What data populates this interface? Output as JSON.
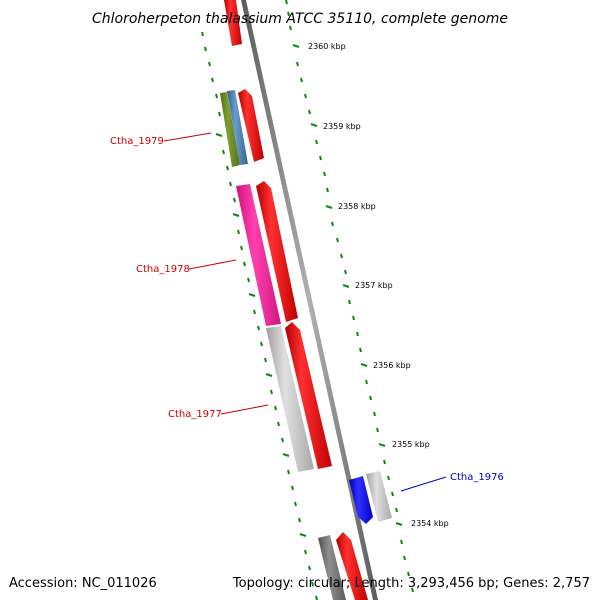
{
  "title": "Chloroherpeton thalassium ATCC 35110, complete genome",
  "accession": "Accession: NC_011026",
  "topology": "Topology: circular; Length: 3,293,456 bp; Genes: 2,757",
  "ticks": [
    "2360 kbp",
    "2359 kbp",
    "2358 kbp",
    "2357 kbp",
    "2356 kbp",
    "2355 kbp",
    "2354 kbp"
  ],
  "gene_labels": [
    {
      "text": "Ctha_1979",
      "color": "#cc0000"
    },
    {
      "text": "Ctha_1978",
      "color": "#cc0000"
    },
    {
      "text": "Ctha_1977",
      "color": "#cc0000"
    },
    {
      "text": "Ctha_1976",
      "color": "#0000cc"
    }
  ],
  "colors": {
    "forward_gene": "#ff0000",
    "highlight_magenta": "#ff2aa0",
    "highlight_blue": "#0000ff",
    "hypothetical_gray": "#c0c0c0",
    "olive": "#6b8e23",
    "steel_blue": "#4682b4",
    "dark_gray": "#707070",
    "backbone": "#8a8a8a",
    "tick_green": "#0a8a0a"
  }
}
